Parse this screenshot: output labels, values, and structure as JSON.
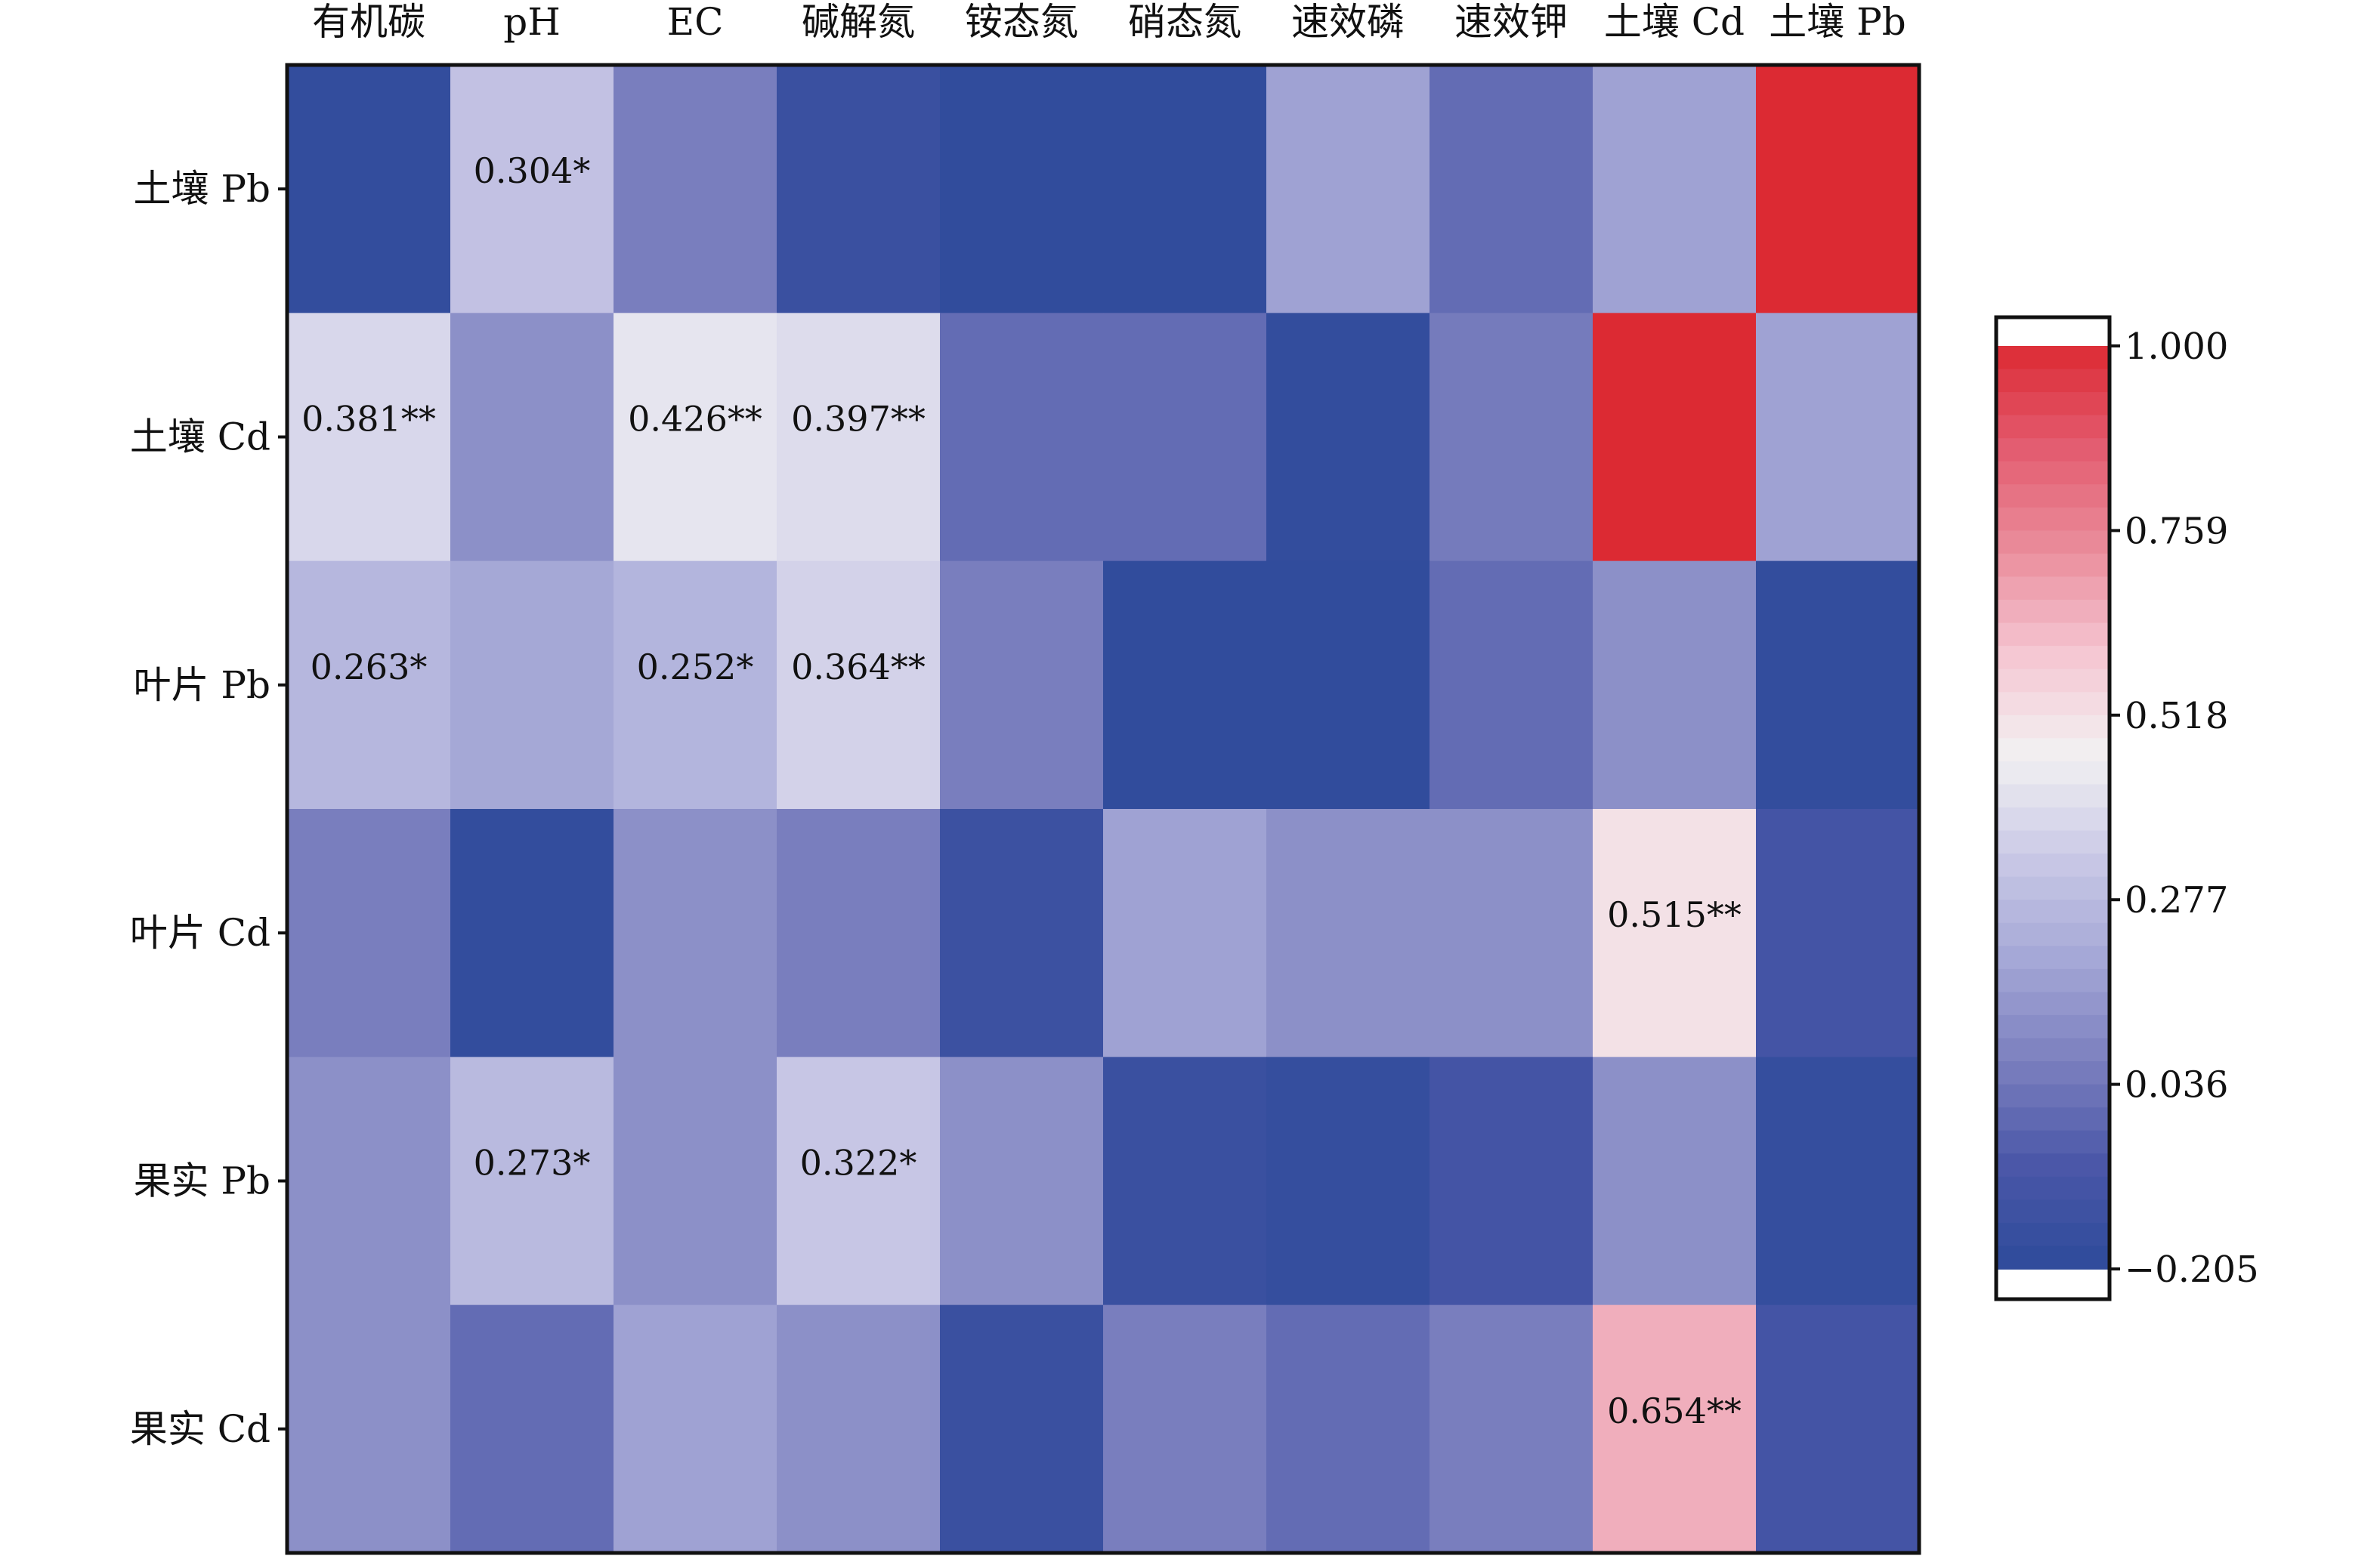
{
  "chart_data": {
    "type": "heatmap",
    "title": "",
    "xlabel": "",
    "ylabel": "",
    "columns": [
      "有机碳",
      "pH",
      "EC",
      "碱解氮",
      "铵态氮",
      "硝态氮",
      "速效磷",
      "速效钾",
      "土壤 Cd",
      "土壤 Pb"
    ],
    "rows": [
      "土壤 Pb",
      "土壤 Cd",
      "叶片 Pb",
      "叶片 Cd",
      "果实 Pb",
      "果实 Cd"
    ],
    "values": [
      [
        -0.18,
        0.304,
        0.06,
        -0.15,
        -0.19,
        -0.19,
        0.18,
        0.0,
        0.18,
        1.0
      ],
      [
        0.381,
        0.12,
        0.426,
        0.397,
        0.0,
        0.0,
        -0.18,
        0.05,
        1.0,
        0.18
      ],
      [
        0.263,
        0.2,
        0.252,
        0.364,
        0.06,
        -0.19,
        -0.19,
        0.0,
        0.12,
        -0.18
      ],
      [
        0.06,
        -0.18,
        0.12,
        0.06,
        -0.14,
        0.18,
        0.12,
        0.12,
        0.515,
        -0.1
      ],
      [
        0.12,
        0.273,
        0.12,
        0.322,
        0.12,
        -0.15,
        -0.17,
        -0.1,
        0.12,
        -0.17
      ],
      [
        0.12,
        0.0,
        0.18,
        0.12,
        -0.15,
        0.06,
        0.0,
        0.06,
        0.654,
        -0.1
      ]
    ],
    "annotations": [
      [
        "",
        "0.304*",
        "",
        "",
        "",
        "",
        "",
        "",
        "",
        ""
      ],
      [
        "0.381**",
        "",
        "0.426**",
        "0.397**",
        "",
        "",
        "",
        "",
        "",
        ""
      ],
      [
        "0.263*",
        "",
        "0.252*",
        "0.364**",
        "",
        "",
        "",
        "",
        "",
        ""
      ],
      [
        "",
        "",
        "",
        "",
        "",
        "",
        "",
        "",
        "0.515**",
        ""
      ],
      [
        "",
        "0.273*",
        "",
        "0.322*",
        "",
        "",
        "",
        "",
        "",
        ""
      ],
      [
        "",
        "",
        "",
        "",
        "",
        "",
        "",
        "",
        "0.654**",
        ""
      ]
    ],
    "colorbar": {
      "min": -0.205,
      "max": 1.0,
      "ticks": [
        "1.000",
        "0.759",
        "0.518",
        "0.277",
        "0.036",
        "−0.205"
      ],
      "colors": [
        "#2e4b9b",
        "#4a57a8",
        "#7a7fbe",
        "#a4a7d6",
        "#c9c8e6",
        "#f2f1f2",
        "#f5c6d2",
        "#ea8d9c",
        "#e35c70",
        "#dc2a33"
      ]
    }
  }
}
